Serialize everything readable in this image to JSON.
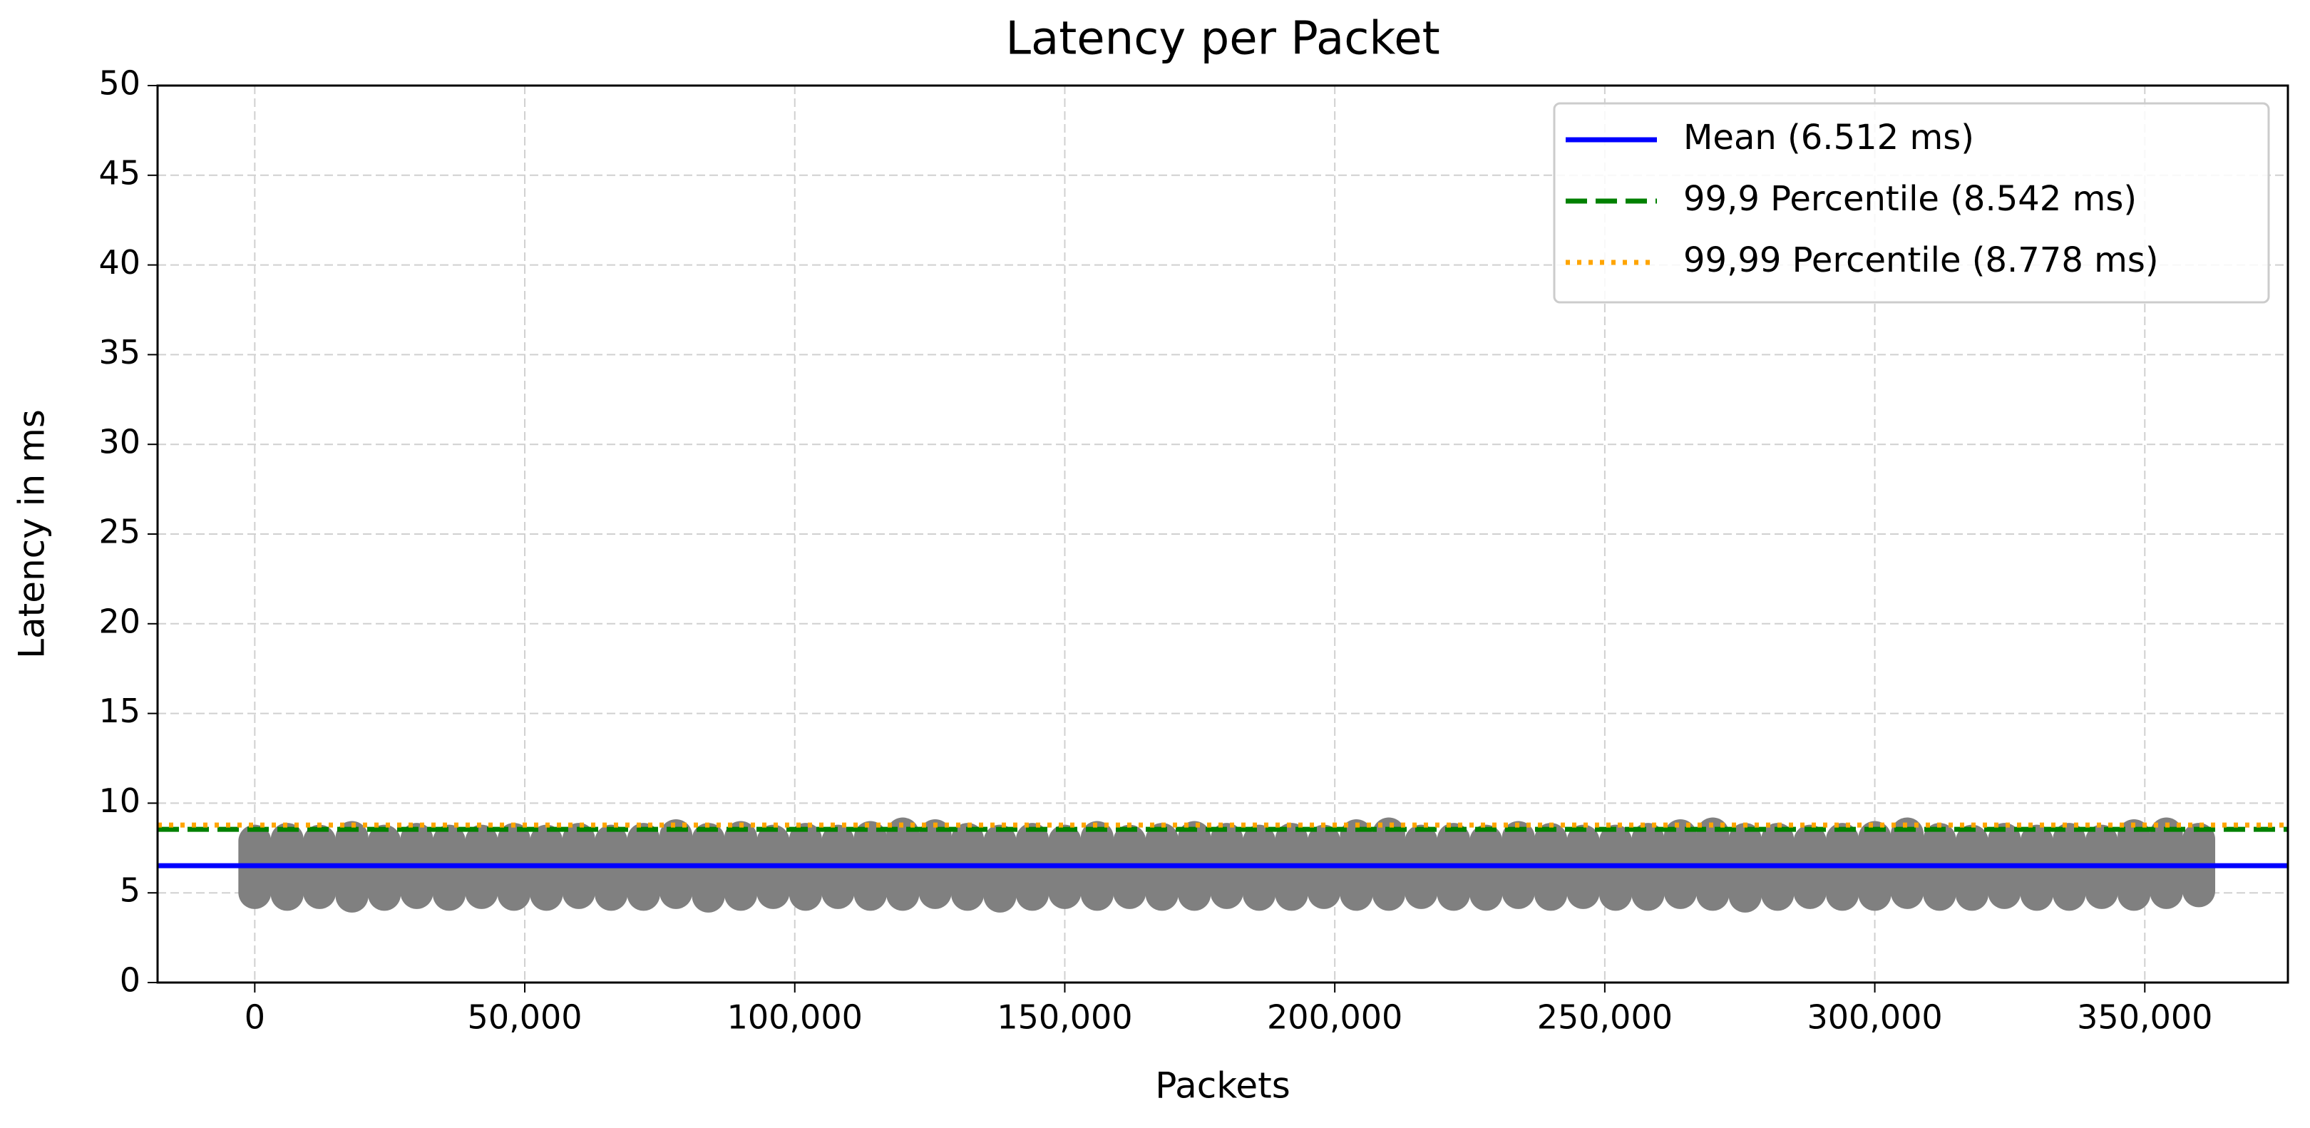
{
  "chart_data": {
    "type": "scatter",
    "title": "Latency per Packet",
    "x_label": "Packets",
    "y_label": "Latency in ms",
    "xlim": [
      -18000,
      376500
    ],
    "ylim": [
      0,
      50
    ],
    "xticks": [
      0,
      {
        "value": 50000,
        "label": "50,000"
      },
      {
        "value": 100000,
        "label": "100,000"
      },
      {
        "value": 150000,
        "label": "150,000"
      },
      {
        "value": 200000,
        "label": "200,000"
      },
      {
        "value": 250000,
        "label": "250,000"
      },
      {
        "value": 300000,
        "label": "300,000"
      },
      {
        "value": 350000,
        "label": "350,000"
      }
    ],
    "yticks": [
      0,
      5,
      10,
      15,
      20,
      25,
      30,
      35,
      40,
      45,
      50
    ],
    "grid": true,
    "legend": "upper right",
    "points": {
      "color": "#808080",
      "x": [
        0,
        6000,
        12000,
        18000,
        24000,
        30000,
        36000,
        42000,
        48000,
        54000,
        60000,
        66000,
        72000,
        78000,
        84000,
        90000,
        96000,
        102000,
        108000,
        114000,
        120000,
        126000,
        132000,
        138000,
        144000,
        150000,
        156000,
        162000,
        168000,
        174000,
        180000,
        186000,
        192000,
        198000,
        204000,
        210000,
        216000,
        222000,
        228000,
        234000,
        240000,
        246000,
        252000,
        258000,
        264000,
        270000,
        276000,
        282000,
        288000,
        294000,
        300000,
        306000,
        312000,
        318000,
        324000,
        330000,
        336000,
        342000,
        348000,
        354000,
        360000
      ],
      "y_max": [
        8.8,
        8.9,
        8.8,
        9.0,
        8.8,
        8.9,
        8.8,
        8.8,
        8.9,
        8.8,
        8.9,
        8.8,
        8.9,
        9.1,
        8.9,
        9.0,
        8.8,
        8.9,
        8.8,
        9.0,
        9.2,
        9.1,
        8.9,
        8.8,
        8.9,
        8.8,
        9.0,
        8.8,
        8.9,
        9.0,
        8.9,
        8.8,
        8.9,
        8.8,
        9.1,
        9.2,
        8.8,
        8.9,
        8.8,
        9.0,
        8.9,
        8.8,
        8.8,
        8.9,
        9.1,
        9.2,
        8.9,
        8.9,
        8.8,
        8.9,
        9.0,
        9.2,
        8.9,
        8.8,
        8.9,
        8.8,
        8.9,
        8.8,
        9.1,
        9.2,
        8.9
      ],
      "y_min": [
        4.1,
        4.0,
        4.1,
        3.9,
        4.0,
        4.1,
        4.0,
        4.1,
        4.0,
        4.0,
        4.1,
        4.0,
        4.0,
        4.1,
        3.9,
        4.0,
        4.1,
        4.0,
        4.1,
        4.0,
        4.0,
        4.1,
        4.0,
        3.9,
        4.0,
        4.1,
        4.0,
        4.1,
        4.0,
        4.0,
        4.1,
        4.0,
        4.0,
        4.1,
        4.0,
        4.0,
        4.1,
        4.0,
        4.0,
        4.1,
        4.0,
        4.1,
        4.0,
        4.0,
        4.1,
        4.0,
        3.9,
        4.0,
        4.1,
        4.0,
        4.0,
        4.1,
        4.0,
        4.0,
        4.1,
        4.0,
        4.0,
        4.1,
        4.0,
        4.1,
        4.2
      ]
    },
    "lines": [
      {
        "name": "Mean (6.512 ms)",
        "value": 6.512,
        "color": "#0000ff",
        "style": "solid"
      },
      {
        "name": "99,9 Percentile (8.542 ms)",
        "value": 8.542,
        "color": "#008000",
        "style": "dashed"
      },
      {
        "name": "99,99 Percentile (8.778 ms)",
        "value": 8.778,
        "color": "#ffa500",
        "style": "dotted"
      }
    ]
  }
}
